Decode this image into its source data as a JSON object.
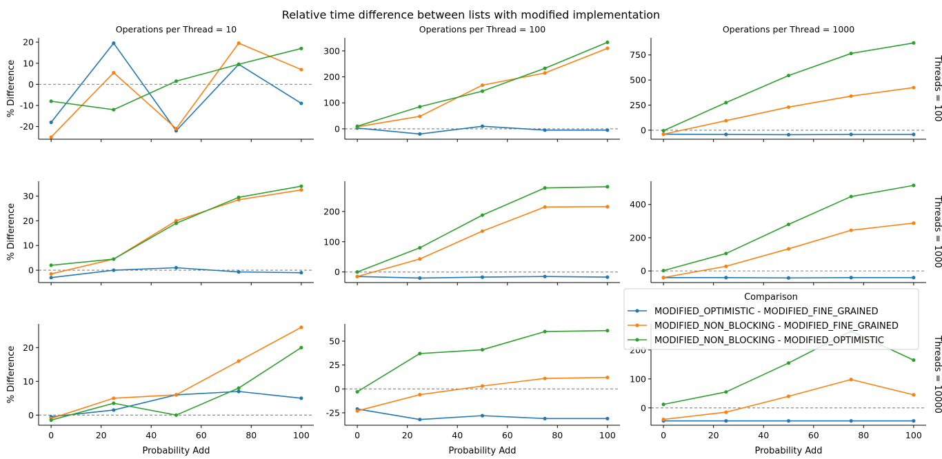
{
  "chart_data": {
    "type": "line",
    "title": "Relative time difference between lists with modified implementation",
    "xlabel": "Probability Add",
    "ylabel": "% Difference",
    "x": [
      0,
      25,
      50,
      75,
      100
    ],
    "x_ticks": [
      0,
      20,
      40,
      60,
      80,
      100
    ],
    "xlim": [
      -5,
      105
    ],
    "grid": false,
    "reference_line_y": 0,
    "col_titles": [
      "Operations per Thread = 10",
      "Operations per Thread = 100",
      "Operations per Thread = 1000"
    ],
    "row_titles": [
      "Threads = 100",
      "Threads = 1000",
      "Threads = 10000"
    ],
    "legend": {
      "title": "Comparison",
      "placement": "right",
      "entries": [
        {
          "name": "MODIFIED_OPTIMISTIC - MODIFIED_FINE_GRAINED",
          "color": "#1f77b4"
        },
        {
          "name": "MODIFIED_NON_BLOCKING - MODIFIED_FINE_GRAINED",
          "color": "#ff7f0e"
        },
        {
          "name": "MODIFIED_NON_BLOCKING - MODIFIED_OPTIMISTIC",
          "color": "#2ca02c"
        }
      ]
    },
    "panels": [
      {
        "row": 0,
        "col": 0,
        "ylim": [
          -26,
          22
        ],
        "yticks": [
          -20,
          -10,
          0,
          10,
          20
        ],
        "series": [
          [
            -18,
            19.5,
            -22,
            9.5,
            -9
          ],
          [
            -25,
            5.5,
            -21,
            19.5,
            7
          ],
          [
            -8,
            -12,
            1.5,
            9.5,
            17
          ]
        ]
      },
      {
        "row": 0,
        "col": 1,
        "ylim": [
          -40,
          350
        ],
        "yticks": [
          0,
          100,
          200,
          300
        ],
        "series": [
          [
            3,
            -20,
            10,
            -5,
            -5
          ],
          [
            8,
            48,
            168,
            215,
            310
          ],
          [
            10,
            85,
            145,
            233,
            333
          ]
        ]
      },
      {
        "row": 0,
        "col": 2,
        "ylim": [
          -90,
          920
        ],
        "yticks": [
          0,
          250,
          500,
          750
        ],
        "series": [
          [
            -40,
            -42,
            -45,
            -42,
            -42
          ],
          [
            -40,
            95,
            230,
            340,
            425
          ],
          [
            -5,
            275,
            545,
            765,
            870
          ]
        ]
      },
      {
        "row": 1,
        "col": 0,
        "ylim": [
          -5,
          36
        ],
        "yticks": [
          0,
          10,
          20,
          30
        ],
        "series": [
          [
            -3,
            0,
            1,
            -0.7,
            -1
          ],
          [
            -1.5,
            4.5,
            20,
            28.5,
            32.5
          ],
          [
            2,
            4.5,
            19,
            29.5,
            34
          ]
        ]
      },
      {
        "row": 1,
        "col": 1,
        "ylim": [
          -35,
          300
        ],
        "yticks": [
          0,
          100,
          200
        ],
        "series": [
          [
            -15,
            -20,
            -17,
            -15,
            -17
          ],
          [
            -15,
            43,
            135,
            215,
            216
          ],
          [
            0,
            80,
            188,
            278,
            282
          ]
        ]
      },
      {
        "row": 1,
        "col": 2,
        "ylim": [
          -70,
          540
        ],
        "yticks": [
          0,
          200,
          400
        ],
        "series": [
          [
            -40,
            -40,
            -42,
            -40,
            -40
          ],
          [
            -40,
            28,
            133,
            245,
            288
          ],
          [
            2,
            105,
            280,
            448,
            515
          ]
        ]
      },
      {
        "row": 2,
        "col": 0,
        "ylim": [
          -3,
          27
        ],
        "yticks": [
          0,
          10,
          20
        ],
        "series": [
          [
            -0.5,
            1.5,
            6,
            7,
            5
          ],
          [
            -1,
            5,
            6,
            16,
            26
          ],
          [
            -1.5,
            3.5,
            0,
            8,
            20
          ]
        ]
      },
      {
        "row": 2,
        "col": 1,
        "ylim": [
          -38,
          68
        ],
        "yticks": [
          -25,
          0,
          25,
          50
        ],
        "series": [
          [
            -21,
            -32,
            -28,
            -31,
            -31
          ],
          [
            -23,
            -6,
            3,
            11,
            12
          ],
          [
            -3,
            37,
            41,
            60,
            61
          ]
        ]
      },
      {
        "row": 2,
        "col": 2,
        "ylim": [
          -60,
          290
        ],
        "yticks": [
          0,
          100,
          200
        ],
        "series": [
          [
            -45,
            -45,
            -45,
            -45,
            -45
          ],
          [
            -40,
            -15,
            40,
            98,
            45
          ],
          [
            12,
            55,
            155,
            265,
            165
          ]
        ]
      }
    ]
  }
}
